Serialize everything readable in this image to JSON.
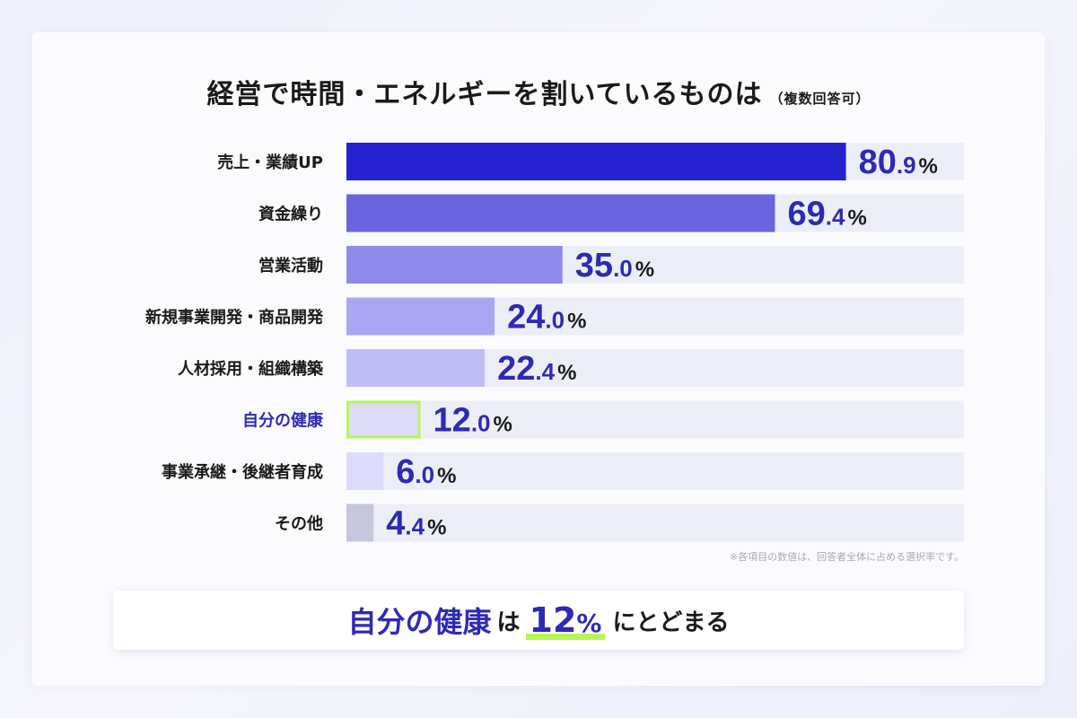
{
  "title": "経営で時間・エネルギーを割いているものは",
  "title_sub": "（複数回答可）",
  "note": "※各項目の数値は、回答者全体に占める選択率です。",
  "banner": {
    "subject": "自分の健康",
    "particle": "は",
    "value": "12",
    "percent": "%",
    "tail": "にとどまる"
  },
  "colors": {
    "accent": "#2d2ab6",
    "highlight": "#b7f45a",
    "track": "#eceef7"
  },
  "chart_data": {
    "type": "bar",
    "orientation": "horizontal",
    "categories": [
      "売上・業績UP",
      "資金繰り",
      "営業活動",
      "新規事業開発・商品開発",
      "人材採用・組織構築",
      "自分の健康",
      "事業承継・後継者育成",
      "その他"
    ],
    "values": [
      80.9,
      69.4,
      35.0,
      24.0,
      22.4,
      12.0,
      6.0,
      4.4
    ],
    "value_labels": [
      {
        "int": "80",
        "dec": ".9",
        "unit": "%"
      },
      {
        "int": "69",
        "dec": ".4",
        "unit": "%"
      },
      {
        "int": "35",
        "dec": ".0",
        "unit": "%"
      },
      {
        "int": "24",
        "dec": ".0",
        "unit": "%"
      },
      {
        "int": "22",
        "dec": ".4",
        "unit": "%"
      },
      {
        "int": "12",
        "dec": ".0",
        "unit": "%"
      },
      {
        "int": "6",
        "dec": ".0",
        "unit": "%"
      },
      {
        "int": "4",
        "dec": ".4",
        "unit": "%"
      }
    ],
    "bar_colors": [
      "#2521d1",
      "#6a63df",
      "#8f8aea",
      "#aba6f3",
      "#c0bdf6",
      "#dcdbf8",
      "#dcdbf9",
      "#c6c6dc"
    ],
    "highlighted_category": "自分の健康",
    "xlim": [
      0,
      100
    ],
    "grid": false,
    "legend": "none"
  }
}
